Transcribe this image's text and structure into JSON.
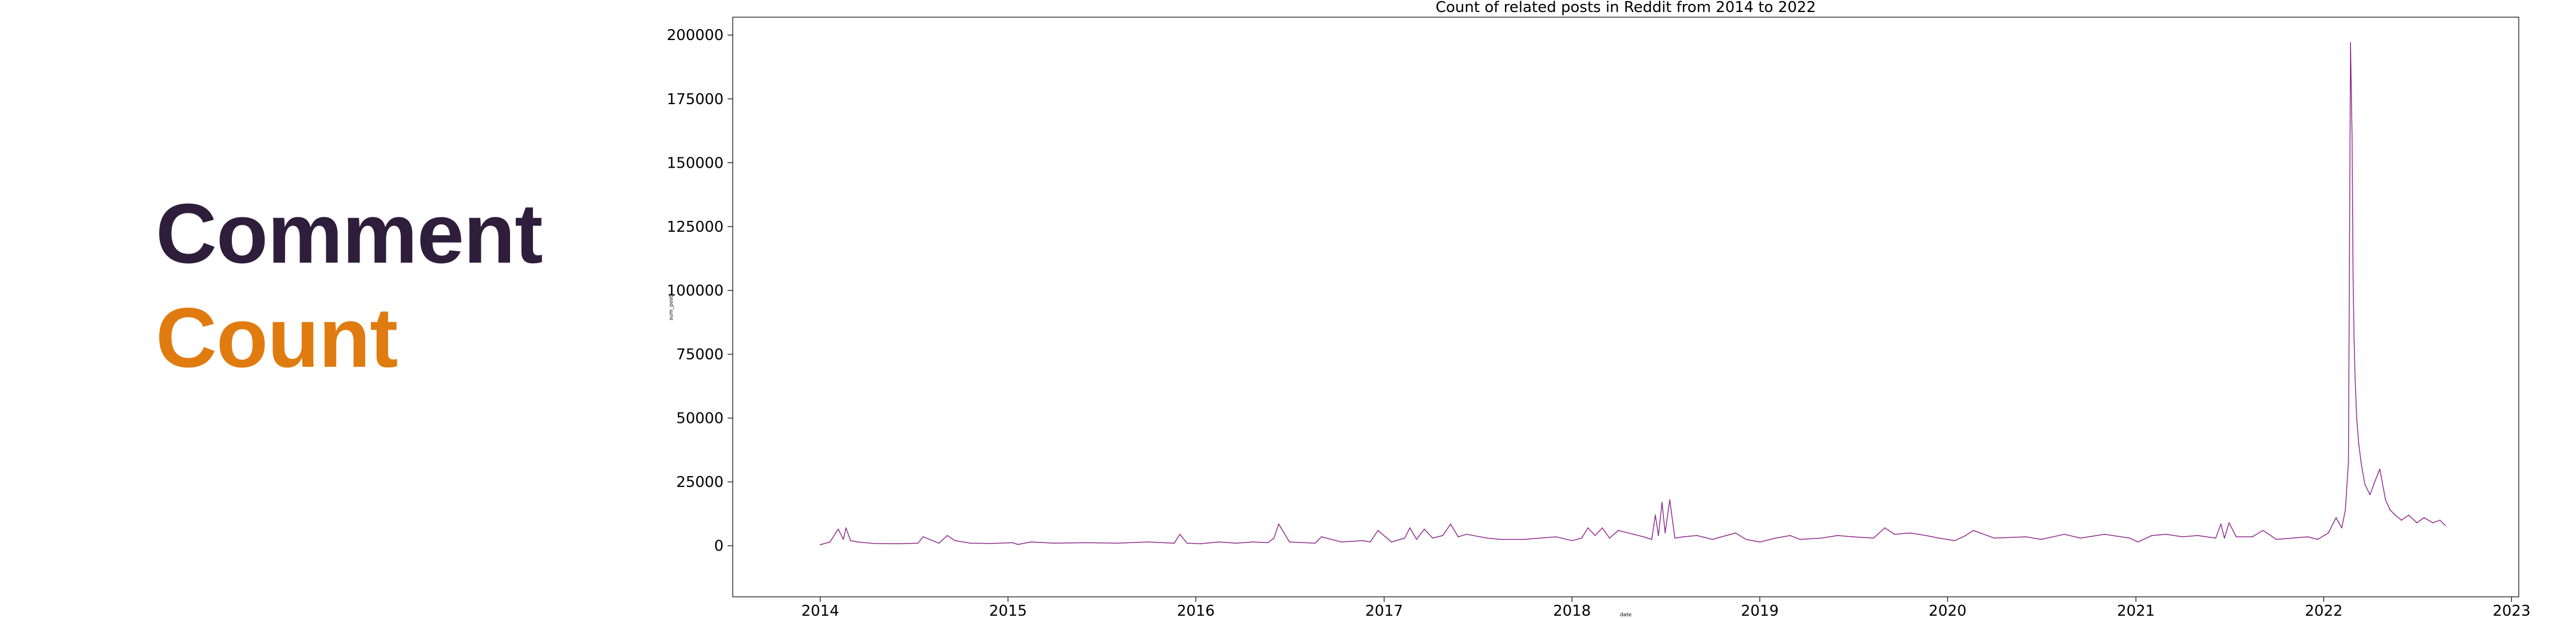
{
  "headline": {
    "line1": "Comment",
    "line2": "Count",
    "line1_color": "#2e1e3b",
    "line2_color": "#e07b10"
  },
  "chart_data": {
    "type": "line",
    "title": "Count of related posts in Reddit from 2014 to 2022",
    "xlabel": "date",
    "ylabel": "sum_posts",
    "xlim": [
      "2013-07-15",
      "2023-01-15"
    ],
    "ylim": [
      -20000,
      207000
    ],
    "x_ticks": [
      "2014",
      "2015",
      "2016",
      "2017",
      "2018",
      "2019",
      "2020",
      "2021",
      "2022",
      "2023"
    ],
    "y_ticks": [
      0,
      25000,
      50000,
      75000,
      100000,
      125000,
      150000,
      175000,
      200000
    ],
    "grid": false,
    "legend": "none",
    "series": [
      {
        "color": "#8e2a8c",
        "x": [
          "2014-01-01",
          "2014-01-20",
          "2014-02-05",
          "2014-02-15",
          "2014-02-20",
          "2014-03-01",
          "2014-03-15",
          "2014-04-15",
          "2014-06-01",
          "2014-07-10",
          "2014-07-20",
          "2014-08-20",
          "2014-09-05",
          "2014-09-20",
          "2014-10-20",
          "2014-12-01",
          "2015-01-10",
          "2015-01-20",
          "2015-02-15",
          "2015-04-01",
          "2015-06-01",
          "2015-08-01",
          "2015-10-01",
          "2015-11-20",
          "2015-12-01",
          "2015-12-15",
          "2016-01-10",
          "2016-02-15",
          "2016-03-20",
          "2016-04-20",
          "2016-05-20",
          "2016-06-01",
          "2016-06-10",
          "2016-07-01",
          "2016-08-20",
          "2016-09-01",
          "2016-10-10",
          "2016-11-20",
          "2016-12-05",
          "2016-12-20",
          "2017-01-15",
          "2017-02-10",
          "2017-02-20",
          "2017-03-05",
          "2017-03-20",
          "2017-04-05",
          "2017-04-25",
          "2017-05-10",
          "2017-05-25",
          "2017-06-10",
          "2017-07-20",
          "2017-08-15",
          "2017-10-01",
          "2017-12-01",
          "2018-01-01",
          "2018-01-20",
          "2018-02-01",
          "2018-02-15",
          "2018-03-01",
          "2018-03-15",
          "2018-04-01",
          "2018-05-01",
          "2018-05-20",
          "2018-06-05",
          "2018-06-12",
          "2018-06-18",
          "2018-06-25",
          "2018-07-01",
          "2018-07-10",
          "2018-07-20",
          "2018-08-05",
          "2018-09-01",
          "2018-10-01",
          "2018-11-15",
          "2018-12-05",
          "2019-01-01",
          "2019-02-01",
          "2019-03-01",
          "2019-03-20",
          "2019-05-01",
          "2019-06-01",
          "2019-07-01",
          "2019-08-10",
          "2019-09-01",
          "2019-09-20",
          "2019-10-20",
          "2019-11-20",
          "2019-12-15",
          "2020-01-15",
          "2020-02-05",
          "2020-02-20",
          "2020-04-01",
          "2020-06-01",
          "2020-07-01",
          "2020-08-15",
          "2020-09-15",
          "2020-11-01",
          "2020-12-20",
          "2021-01-05",
          "2021-02-01",
          "2021-03-01",
          "2021-04-01",
          "2021-05-01",
          "2021-06-05",
          "2021-06-15",
          "2021-06-22",
          "2021-07-01",
          "2021-07-15",
          "2021-08-15",
          "2021-09-05",
          "2021-10-01",
          "2021-11-01",
          "2021-12-01",
          "2021-12-20",
          "2022-01-10",
          "2022-01-25",
          "2022-02-05",
          "2022-02-12",
          "2022-02-18",
          "2022-02-22",
          "2022-02-25",
          "2022-02-27",
          "2022-03-01",
          "2022-03-03",
          "2022-03-06",
          "2022-03-10",
          "2022-03-15",
          "2022-03-22",
          "2022-04-01",
          "2022-04-10",
          "2022-04-20",
          "2022-05-01",
          "2022-05-10",
          "2022-05-20",
          "2022-06-01",
          "2022-06-15",
          "2022-07-01",
          "2022-07-15",
          "2022-08-01",
          "2022-08-15",
          "2022-08-25"
        ],
        "values": [
          400,
          1500,
          6500,
          2500,
          7000,
          2000,
          1500,
          900,
          800,
          1000,
          3500,
          1000,
          4000,
          2000,
          1000,
          900,
          1200,
          500,
          1500,
          1000,
          1200,
          1000,
          1500,
          1000,
          4500,
          1000,
          800,
          1500,
          1000,
          1500,
          1200,
          3000,
          8500,
          1500,
          1000,
          3500,
          1500,
          2000,
          1500,
          6000,
          1500,
          3000,
          7000,
          2500,
          6500,
          3000,
          4000,
          8500,
          3500,
          4500,
          3000,
          2500,
          2500,
          3500,
          2000,
          3000,
          7000,
          4000,
          7000,
          3000,
          6000,
          4500,
          3500,
          2500,
          12000,
          4000,
          17000,
          5000,
          18000,
          3000,
          3500,
          4000,
          2500,
          5000,
          2500,
          1500,
          3000,
          4000,
          2500,
          3000,
          4000,
          3500,
          3000,
          7000,
          4500,
          5000,
          4000,
          3000,
          2000,
          4000,
          6000,
          3000,
          3500,
          2500,
          4500,
          3000,
          4500,
          3000,
          1500,
          4000,
          4500,
          3500,
          4000,
          3000,
          8500,
          3000,
          9000,
          3500,
          3500,
          6000,
          2500,
          3000,
          3500,
          2500,
          5000,
          11000,
          7000,
          14000,
          33000,
          197000,
          160000,
          105000,
          80000,
          65000,
          50000,
          40000,
          32000,
          24000,
          20000,
          25000,
          30000,
          18000,
          14000,
          12000,
          10000,
          12000,
          9000,
          11000,
          9000,
          10000,
          8000
        ]
      }
    ]
  }
}
